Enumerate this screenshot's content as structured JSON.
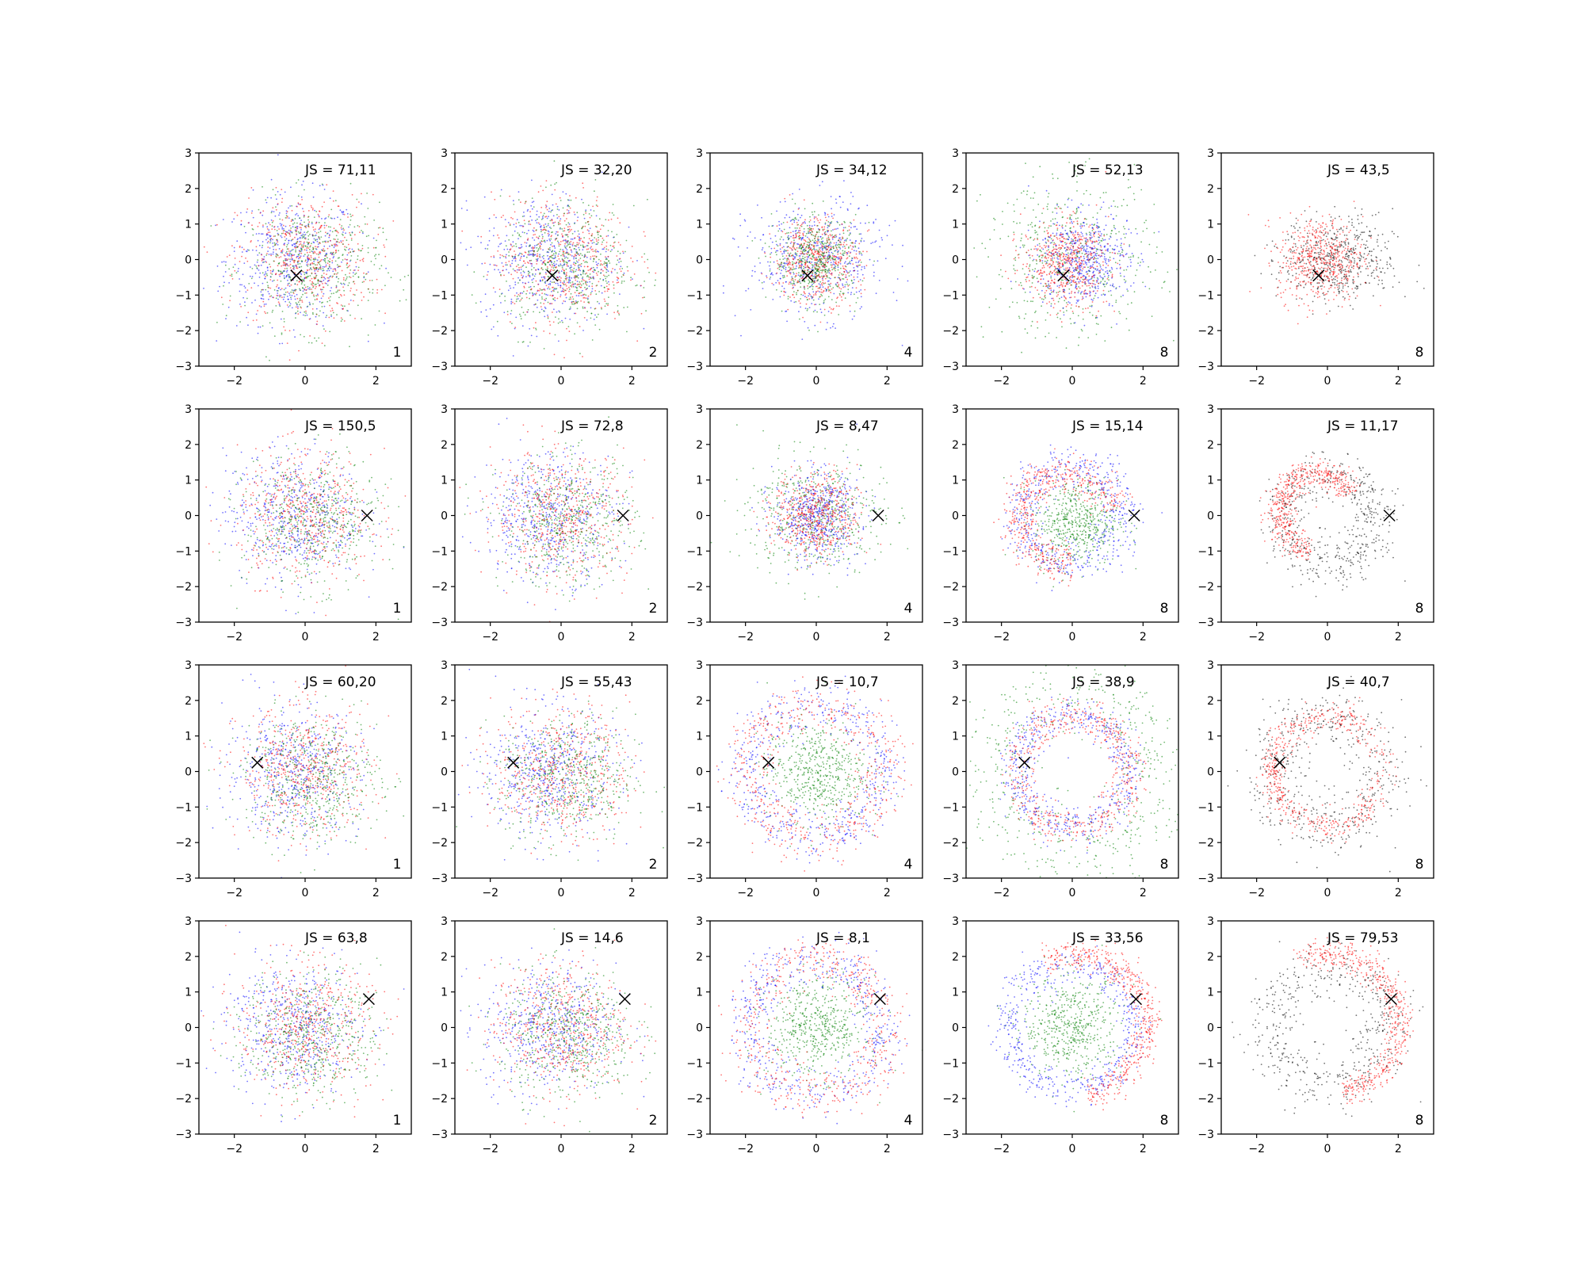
{
  "chart_data": {
    "type": "scatter",
    "layout": {
      "rows": 4,
      "cols": 5
    },
    "axes": {
      "xlim": [
        -3,
        3
      ],
      "ylim": [
        -3,
        3
      ],
      "xticks": [
        -2,
        0,
        2
      ],
      "yticks": [
        -3,
        -2,
        -1,
        0,
        1,
        2,
        3
      ],
      "grid": false
    },
    "series_colors": {
      "blue": "#0000ff",
      "red": "#ff0000",
      "green": "#008000",
      "black": "#000000"
    },
    "panels": [
      {
        "annotation": "JS = 71,11",
        "corner_label": "1",
        "marker": [
          -0.25,
          -0.45
        ],
        "pattern": "gauss-wide",
        "colors": [
          "blue",
          "red",
          "green"
        ]
      },
      {
        "annotation": "JS = 32,20",
        "corner_label": "2",
        "marker": [
          -0.25,
          -0.45
        ],
        "pattern": "gauss-wide",
        "colors": [
          "blue",
          "red",
          "green"
        ]
      },
      {
        "annotation": "JS = 34,12",
        "corner_label": "4",
        "marker": [
          -0.25,
          -0.45
        ],
        "pattern": "gauss-dense",
        "colors": [
          "blue",
          "red",
          "green"
        ]
      },
      {
        "annotation": "JS = 52,13",
        "corner_label": "8",
        "marker": [
          -0.25,
          -0.45
        ],
        "pattern": "gauss-mixed",
        "colors": [
          "green",
          "blue",
          "red"
        ]
      },
      {
        "annotation": "JS = 43,5",
        "corner_label": "8",
        "marker": [
          -0.25,
          -0.45
        ],
        "pattern": "gauss-redblack",
        "colors": [
          "black",
          "red"
        ]
      },
      {
        "annotation": "JS = 150,5",
        "corner_label": "1",
        "marker": [
          1.75,
          0.0
        ],
        "pattern": "gauss-wide",
        "colors": [
          "blue",
          "red",
          "green"
        ]
      },
      {
        "annotation": "JS = 72,8",
        "corner_label": "2",
        "marker": [
          1.75,
          0.0
        ],
        "pattern": "gauss-wide",
        "colors": [
          "blue",
          "red",
          "green"
        ]
      },
      {
        "annotation": "JS = 8,47",
        "corner_label": "4",
        "marker": [
          1.75,
          0.0
        ],
        "pattern": "gauss-dense",
        "colors": [
          "green",
          "blue",
          "red"
        ]
      },
      {
        "annotation": "JS = 15,14",
        "corner_label": "8",
        "marker": [
          1.75,
          0.0
        ],
        "pattern": "crescent",
        "colors": [
          "green",
          "blue",
          "red"
        ]
      },
      {
        "annotation": "JS = 11,17",
        "corner_label": "8",
        "marker": [
          1.75,
          0.0
        ],
        "pattern": "crescent-rb",
        "colors": [
          "black",
          "red"
        ]
      },
      {
        "annotation": "JS = 60,20",
        "corner_label": "1",
        "marker": [
          -1.35,
          0.25
        ],
        "pattern": "gauss-wide",
        "colors": [
          "blue",
          "red",
          "green"
        ]
      },
      {
        "annotation": "JS = 55,43",
        "corner_label": "2",
        "marker": [
          -1.35,
          0.25
        ],
        "pattern": "gauss-wide",
        "colors": [
          "blue",
          "red",
          "green"
        ]
      },
      {
        "annotation": "JS = 10,7",
        "corner_label": "4",
        "marker": [
          -1.35,
          0.25
        ],
        "pattern": "ring-filled",
        "colors": [
          "green",
          "blue",
          "red"
        ]
      },
      {
        "annotation": "JS = 38,9",
        "corner_label": "8",
        "marker": [
          -1.35,
          0.25
        ],
        "pattern": "ring-hollow",
        "colors": [
          "green",
          "blue",
          "red"
        ]
      },
      {
        "annotation": "JS = 40,7",
        "corner_label": "8",
        "marker": [
          -1.35,
          0.25
        ],
        "pattern": "ring-rb",
        "colors": [
          "black",
          "red"
        ]
      },
      {
        "annotation": "JS = 63,8",
        "corner_label": "1",
        "marker": [
          1.8,
          0.8
        ],
        "pattern": "gauss-wide",
        "colors": [
          "blue",
          "red",
          "green"
        ]
      },
      {
        "annotation": "JS = 14,6",
        "corner_label": "2",
        "marker": [
          1.8,
          0.8
        ],
        "pattern": "gauss-wide",
        "colors": [
          "blue",
          "red",
          "green"
        ]
      },
      {
        "annotation": "JS = 8,1",
        "corner_label": "4",
        "marker": [
          1.8,
          0.8
        ],
        "pattern": "ring-filled",
        "colors": [
          "green",
          "blue",
          "red"
        ]
      },
      {
        "annotation": "JS = 33,56",
        "corner_label": "8",
        "marker": [
          1.8,
          0.8
        ],
        "pattern": "ring-shift",
        "colors": [
          "green",
          "blue",
          "red"
        ]
      },
      {
        "annotation": "JS = 79,53",
        "corner_label": "8",
        "marker": [
          1.8,
          0.8
        ],
        "pattern": "ring-shift-rb",
        "colors": [
          "black",
          "red"
        ]
      }
    ]
  }
}
